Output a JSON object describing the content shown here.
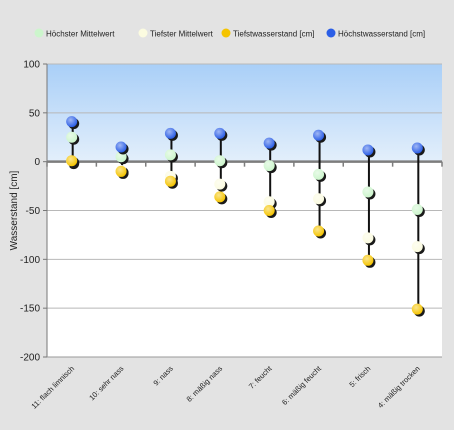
{
  "chart_data": {
    "type": "scatter",
    "title": "",
    "xlabel": "",
    "ylabel": "Wasserstand [cm]",
    "ylim": [
      -200,
      100
    ],
    "yticks": [
      100,
      50,
      0,
      -50,
      -100,
      -150,
      -200
    ],
    "grid": true,
    "legend_position": "top",
    "categories": [
      "11: flach limnisch",
      "10: sehr nass",
      "9: nass",
      "8: mäßig nass",
      "7: feucht",
      "6: mäßig feucht",
      "5: frisch",
      "4: mäßig trocken"
    ],
    "series": [
      {
        "name": "Höchster Mittelwert",
        "color": "#ccf5cc",
        "values": [
          25,
          5,
          7,
          1,
          -4,
          -13,
          -31,
          -49
        ]
      },
      {
        "name": "Tiefster Mittelwert",
        "color": "#fbfbe0",
        "values": [
          0,
          -9,
          -15,
          -23,
          -41,
          -38,
          -78,
          -87
        ]
      },
      {
        "name": "Tiefstwasserstand [cm]",
        "color": "#f5c400",
        "values": [
          1,
          -10,
          -20,
          -36,
          -50,
          -71,
          -101,
          -151
        ]
      },
      {
        "name": "Höchstwasserstand [cm]",
        "color": "#2b5ee6",
        "values": [
          41,
          15,
          29,
          29,
          19,
          27,
          12,
          14
        ]
      }
    ]
  }
}
